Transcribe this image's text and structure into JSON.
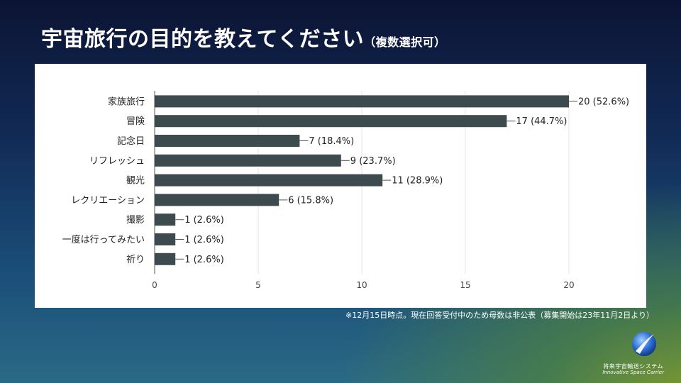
{
  "slide": {
    "title": "宇宙旅行の目的を教えてください",
    "title_sub": "（複数選択可）",
    "footnote": "※12月15日時点。現在回答受付中のため母数は非公表（募集開始は23年11月2日より）"
  },
  "brand": {
    "name_ja": "将来宇宙輸送システム",
    "name_en": "Innovative Space Carrier",
    "logo_icon": "globe-swoosh-icon"
  },
  "colors": {
    "bar": "#3d4b4f",
    "grid": "#e4e4e4",
    "axis": "#555555"
  },
  "chart_data": {
    "type": "bar",
    "orientation": "horizontal",
    "categories": [
      "家族旅行",
      "冒険",
      "記念日",
      "リフレッシュ",
      "観光",
      "レクリエーション",
      "撮影",
      "一度は行ってみたい",
      "祈り"
    ],
    "values": [
      20,
      17,
      7,
      9,
      11,
      6,
      1,
      1,
      1
    ],
    "value_labels": [
      "20 (52.6%)",
      "17 (44.7%)",
      "7 (18.4%)",
      "9 (23.7%)",
      "11 (28.9%)",
      "6 (15.8%)",
      "1 (2.6%)",
      "1 (2.6%)",
      "1 (2.6%)"
    ],
    "xlim": [
      0,
      20
    ],
    "xticks": [
      0,
      5,
      10,
      15,
      20
    ],
    "xlabel": "",
    "ylabel": "",
    "grid": true
  }
}
